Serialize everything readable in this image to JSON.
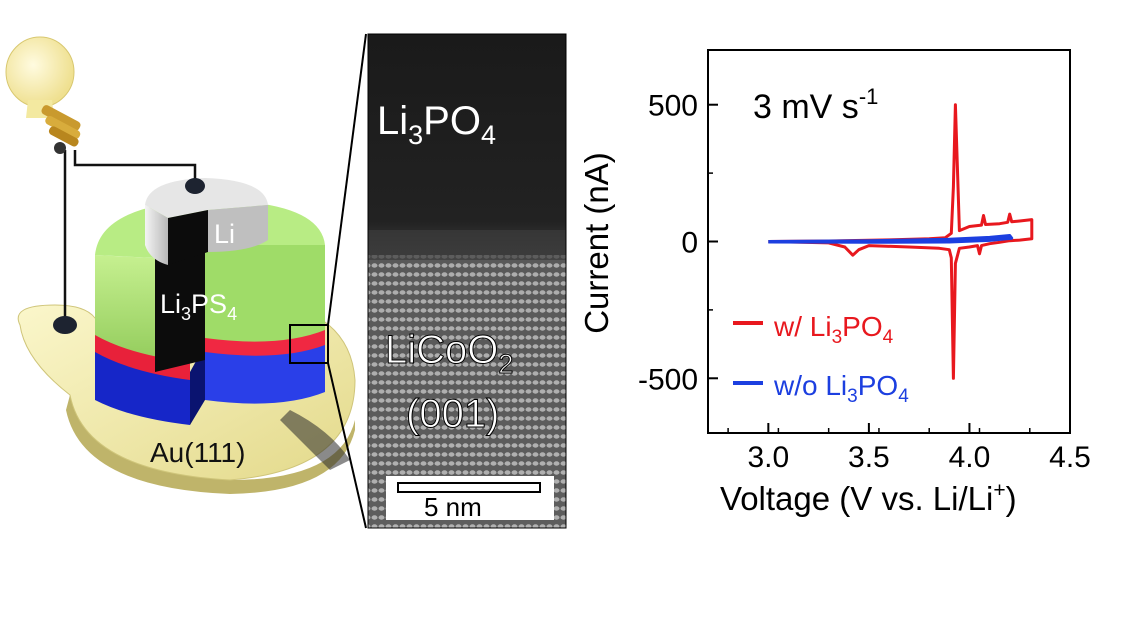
{
  "device": {
    "li_label": "Li",
    "electrolyte_label": {
      "base": "Li",
      "sub1": "3",
      "mid": "PS",
      "sub2": "4"
    },
    "substrate_label": "Au(111)",
    "colors": {
      "bulb": "#f7eea0",
      "electrolyte_green": "#a6df6e",
      "interlayer_red": "#e8213a",
      "cathode_blue": "#1c2fe0",
      "gold": "#efe9a8",
      "li_metal": "#d9d9d9"
    }
  },
  "tem": {
    "top_label": {
      "base": "Li",
      "sub1": "3",
      "mid": "PO",
      "sub2": "4"
    },
    "bottom_label": {
      "base": "LiCoO",
      "sub": "2"
    },
    "orientation_label": "(001)",
    "scale_bar_label": "5 nm"
  },
  "chart_data": {
    "type": "line",
    "title": "3 mV s",
    "title_sup": "-1",
    "xlabel": "Voltage (V vs. Li/Li",
    "xlabel_sup": "+",
    "xlabel_end": ")",
    "ylabel": "Current (nA)",
    "xlim": [
      2.7,
      4.5
    ],
    "ylim": [
      -700,
      700
    ],
    "xticks": [
      3.0,
      3.5,
      4.0,
      4.5
    ],
    "xtick_labels": [
      "3.0",
      "3.5",
      "4.0",
      "4.5"
    ],
    "yticks": [
      500,
      0,
      -500
    ],
    "ytick_labels": [
      "500",
      "0",
      "-500"
    ],
    "legend_position": "bottom-left",
    "series": [
      {
        "name": "w/ Li3PO4",
        "legend": {
          "pre": "w/ Li",
          "sub1": "3",
          "mid": "PO",
          "sub2": "4"
        },
        "color": "#e8181e",
        "x": [
          3.0,
          3.3,
          3.6,
          3.8,
          3.88,
          3.91,
          3.92,
          3.93,
          3.95,
          4.0,
          4.06,
          4.07,
          4.08,
          4.15,
          4.19,
          4.2,
          4.21,
          4.25,
          4.31,
          4.31,
          4.25,
          4.2,
          4.15,
          4.1,
          4.06,
          4.05,
          4.04,
          4.0,
          3.95,
          3.93,
          3.92,
          3.91,
          3.9,
          3.85,
          3.7,
          3.5,
          3.45,
          3.42,
          3.38,
          3.3,
          3.0
        ],
        "y": [
          0,
          2,
          6,
          10,
          14,
          30,
          200,
          500,
          40,
          55,
          60,
          95,
          62,
          65,
          70,
          100,
          72,
          75,
          80,
          10,
          5,
          3,
          -3,
          -8,
          -15,
          -45,
          -15,
          -20,
          -25,
          -80,
          -500,
          -60,
          -30,
          -25,
          -20,
          -15,
          -30,
          -50,
          -20,
          -5,
          0
        ]
      },
      {
        "name": "w/o Li3PO4",
        "legend": {
          "pre": "w/o Li",
          "sub1": "3",
          "mid": "PO",
          "sub2": "4"
        },
        "color": "#1c3fe0",
        "x": [
          3.0,
          3.5,
          3.9,
          4.1,
          4.2,
          4.21,
          4.1,
          3.9,
          3.5,
          3.0
        ],
        "y": [
          0,
          3,
          8,
          15,
          22,
          12,
          4,
          -2,
          -3,
          -2
        ]
      }
    ]
  }
}
